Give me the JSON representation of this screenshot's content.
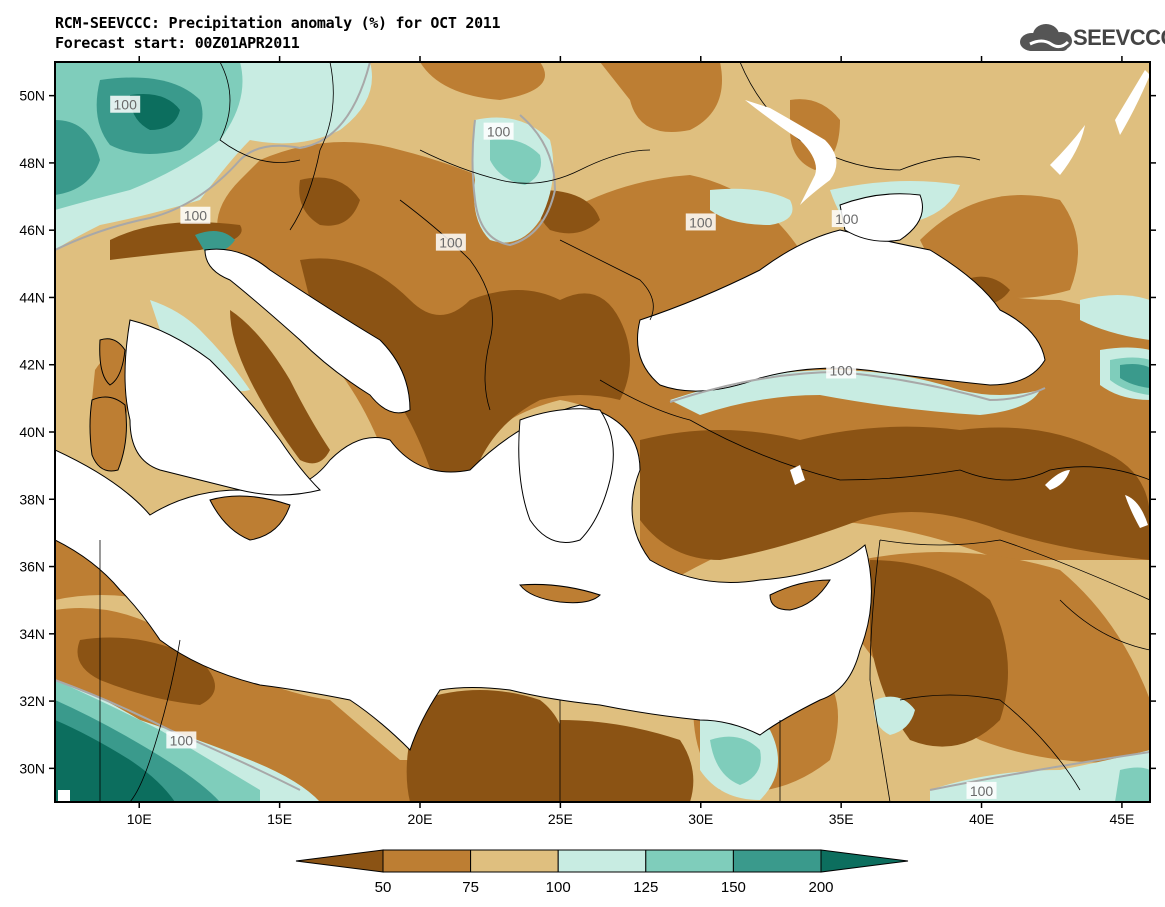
{
  "title": {
    "line1": "RCM-SEEVCCC: Precipitation anomaly (%) for OCT 2011",
    "line2": "Forecast start: 00Z01APR2011"
  },
  "logo": {
    "text": "SEEVCCC",
    "icon": "cloud-logo-icon"
  },
  "map": {
    "lon_range": [
      7,
      46
    ],
    "lat_range": [
      29,
      51
    ],
    "lat_ticks": [
      {
        "value": 50,
        "label": "50N"
      },
      {
        "value": 48,
        "label": "48N"
      },
      {
        "value": 46,
        "label": "46N"
      },
      {
        "value": 44,
        "label": "44N"
      },
      {
        "value": 42,
        "label": "42N"
      },
      {
        "value": 40,
        "label": "40N"
      },
      {
        "value": 38,
        "label": "38N"
      },
      {
        "value": 36,
        "label": "36N"
      },
      {
        "value": 34,
        "label": "34N"
      },
      {
        "value": 32,
        "label": "32N"
      },
      {
        "value": 30,
        "label": "30N"
      }
    ],
    "lon_ticks": [
      {
        "value": 10,
        "label": "10E"
      },
      {
        "value": 15,
        "label": "15E"
      },
      {
        "value": 20,
        "label": "20E"
      },
      {
        "value": 25,
        "label": "25E"
      },
      {
        "value": 30,
        "label": "30E"
      },
      {
        "value": 35,
        "label": "35E"
      },
      {
        "value": 40,
        "label": "40E"
      },
      {
        "value": 45,
        "label": "45E"
      }
    ],
    "contour_labels": [
      {
        "text": "100",
        "lon": 9.5,
        "lat": 49.7
      },
      {
        "text": "100",
        "lon": 22.8,
        "lat": 48.9
      },
      {
        "text": "100",
        "lon": 12.0,
        "lat": 46.4
      },
      {
        "text": "100",
        "lon": 21.1,
        "lat": 45.6
      },
      {
        "text": "100",
        "lon": 30.0,
        "lat": 46.2
      },
      {
        "text": "100",
        "lon": 35.2,
        "lat": 46.3
      },
      {
        "text": "100",
        "lon": 35.0,
        "lat": 41.8
      },
      {
        "text": "100",
        "lon": 11.5,
        "lat": 30.8
      },
      {
        "text": "100",
        "lon": 40.0,
        "lat": 29.3
      }
    ]
  },
  "legend": {
    "levels": [
      "50",
      "75",
      "100",
      "125",
      "150",
      "200"
    ],
    "colors": [
      "#8b5314",
      "#bd7e33",
      "#dfbf7f",
      "#c8ece2",
      "#7fcdbb",
      "#3a9a8c",
      "#0c6e5e"
    ]
  },
  "colors": {
    "very_dry": "#8b5314",
    "dry": "#bd7e33",
    "slightly_dry": "#dfbf7f",
    "slightly_wet": "#c8ece2",
    "wet": "#7fcdbb",
    "very_wet": "#3a9a8c",
    "extreme_wet": "#0c6e5e",
    "sea": "#ffffff",
    "contour_line": "#a8a8a8"
  }
}
